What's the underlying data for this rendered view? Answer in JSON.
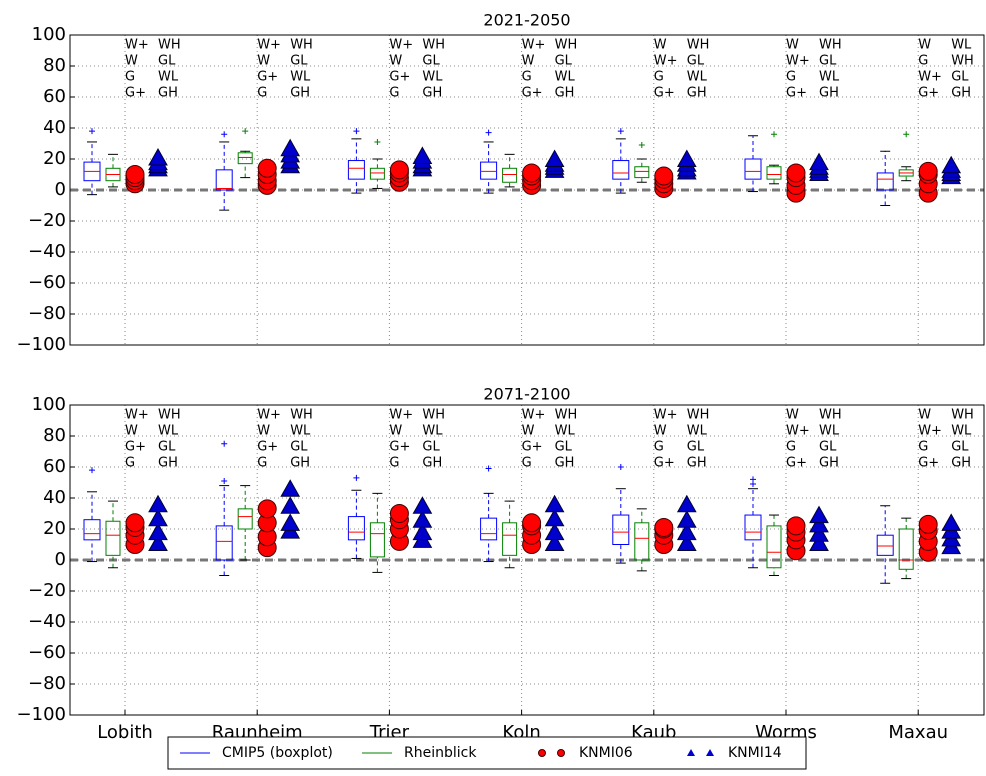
{
  "chart_data": [
    {
      "type": "box",
      "title": "2021-2050",
      "ylim": [
        -100,
        100
      ],
      "yticks": [
        {
          "value": -100,
          "label": "−100"
        },
        {
          "value": -80,
          "label": "−80"
        },
        {
          "value": -60,
          "label": "−60"
        },
        {
          "value": -40,
          "label": "−40"
        },
        {
          "value": -20,
          "label": "−20"
        },
        0,
        20,
        40,
        60,
        80,
        100
      ],
      "grid": true,
      "reference_line": 0,
      "median_color": "#ff0000",
      "series": [
        {
          "name": "CMIP5 (boxplot)",
          "color": "#0000ff",
          "values": [
            {
              "whislo": -3,
              "q1": 6,
              "med": 12,
              "q3": 18,
              "whishi": 31,
              "fliers": [
                38
              ]
            },
            {
              "whislo": -13,
              "q1": 0,
              "med": 1,
              "q3": 13,
              "whishi": 31,
              "fliers": [
                36
              ]
            },
            {
              "whislo": -2,
              "q1": 7,
              "med": 14,
              "q3": 19,
              "whishi": 33,
              "fliers": [
                38
              ]
            },
            {
              "whislo": -2,
              "q1": 7,
              "med": 12,
              "q3": 18,
              "whishi": 31,
              "fliers": [
                37
              ]
            },
            {
              "whislo": -2,
              "q1": 7,
              "med": 11,
              "q3": 19,
              "whishi": 33,
              "fliers": [
                38
              ]
            },
            {
              "whislo": -1,
              "q1": 7,
              "med": 12,
              "q3": 20,
              "whishi": 35,
              "fliers": []
            },
            {
              "whislo": -10,
              "q1": 0,
              "med": 7,
              "q3": 11,
              "whishi": 25,
              "fliers": []
            }
          ]
        },
        {
          "name": "Rheinblick",
          "color": "#008000",
          "values": [
            {
              "whislo": 2,
              "q1": 6,
              "med": 10,
              "q3": 14,
              "whishi": 23,
              "fliers": []
            },
            {
              "whislo": 8,
              "q1": 17,
              "med": 21,
              "q3": 24,
              "whishi": 25,
              "fliers": [
                38
              ]
            },
            {
              "whislo": 1,
              "q1": 7,
              "med": 11,
              "q3": 14,
              "whishi": 20,
              "fliers": [
                31
              ]
            },
            {
              "whislo": 2,
              "q1": 5,
              "med": 10,
              "q3": 14,
              "whishi": 23,
              "fliers": []
            },
            {
              "whislo": 5,
              "q1": 8,
              "med": 12,
              "q3": 15,
              "whishi": 20,
              "fliers": [
                29
              ]
            },
            {
              "whislo": 4,
              "q1": 7,
              "med": 10,
              "q3": 15,
              "whishi": 16,
              "fliers": [
                36
              ]
            },
            {
              "whislo": 6,
              "q1": 9,
              "med": 11,
              "q3": 13,
              "whishi": 15,
              "fliers": [
                36
              ]
            }
          ]
        },
        {
          "name": "KNMI06",
          "color": "#ff0000",
          "marker": "circle",
          "values": [
            [
              4,
              6,
              8,
              10
            ],
            [
              3,
              6,
              10,
              14
            ],
            [
              5,
              8,
              11,
              13
            ],
            [
              3,
              6,
              9,
              11
            ],
            [
              1,
              4,
              7,
              9
            ],
            [
              -2,
              3,
              8,
              11
            ],
            [
              -2,
              4,
              10,
              12
            ]
          ]
        },
        {
          "name": "KNMI14",
          "color": "#0000cc",
          "marker": "triangle",
          "values": [
            [
              13,
              15,
              17,
              20
            ],
            [
              15,
              18,
              22,
              26
            ],
            [
              13,
              15,
              18,
              21
            ],
            [
              12,
              14,
              16,
              19
            ],
            [
              11,
              13,
              16,
              19
            ],
            [
              10,
              12,
              14,
              17
            ],
            [
              8,
              10,
              12,
              15
            ]
          ]
        }
      ],
      "scenario_labels": [
        [
          [
            "W+",
            "W",
            "G",
            "G+"
          ],
          [
            "WH",
            "GL",
            "WL",
            "GH"
          ]
        ],
        [
          [
            "W+",
            "W",
            "G+",
            "G"
          ],
          [
            "WH",
            "GL",
            "WL",
            "GH"
          ]
        ],
        [
          [
            "W+",
            "W",
            "G+",
            "G"
          ],
          [
            "WH",
            "GL",
            "WL",
            "GH"
          ]
        ],
        [
          [
            "W+",
            "W",
            "G",
            "G+"
          ],
          [
            "WH",
            "GL",
            "WL",
            "GH"
          ]
        ],
        [
          [
            "W",
            "W+",
            "G",
            "G+"
          ],
          [
            "WH",
            "GL",
            "WL",
            "GH"
          ]
        ],
        [
          [
            "W",
            "W+",
            "G",
            "G+"
          ],
          [
            "WH",
            "GL",
            "WL",
            "GH"
          ]
        ],
        [
          [
            "W",
            "G",
            "W+",
            "G+"
          ],
          [
            "WL",
            "WH",
            "GL",
            "GH"
          ]
        ]
      ]
    },
    {
      "type": "box",
      "title": "2071-2100",
      "ylim": [
        -100,
        100
      ],
      "yticks": [
        {
          "value": -100,
          "label": "−100"
        },
        {
          "value": -80,
          "label": "−80"
        },
        {
          "value": -60,
          "label": "−60"
        },
        {
          "value": -40,
          "label": "−40"
        },
        {
          "value": -20,
          "label": "−20"
        },
        0,
        20,
        40,
        60,
        80,
        100
      ],
      "grid": true,
      "reference_line": 0,
      "median_color": "#ff0000",
      "categories": [
        "Lobith",
        "Raunheim",
        "Trier",
        "Koln",
        "Kaub",
        "Worms",
        "Maxau"
      ],
      "series": [
        {
          "name": "CMIP5 (boxplot)",
          "color": "#0000ff",
          "values": [
            {
              "whislo": -1,
              "q1": 13,
              "med": 17,
              "q3": 26,
              "whishi": 44,
              "fliers": [
                58
              ]
            },
            {
              "whislo": -10,
              "q1": 0,
              "med": 12,
              "q3": 22,
              "whishi": 48,
              "fliers": [
                51,
                75
              ]
            },
            {
              "whislo": 1,
              "q1": 13,
              "med": 18,
              "q3": 28,
              "whishi": 45,
              "fliers": [
                53
              ]
            },
            {
              "whislo": -1,
              "q1": 13,
              "med": 17,
              "q3": 27,
              "whishi": 43,
              "fliers": [
                59
              ]
            },
            {
              "whislo": -2,
              "q1": 10,
              "med": 18,
              "q3": 29,
              "whishi": 46,
              "fliers": [
                60
              ]
            },
            {
              "whislo": -5,
              "q1": 13,
              "med": 18,
              "q3": 29,
              "whishi": 46,
              "fliers": [
                49,
                52
              ]
            },
            {
              "whislo": -15,
              "q1": 3,
              "med": 9,
              "q3": 16,
              "whishi": 35,
              "fliers": []
            }
          ]
        },
        {
          "name": "Rheinblick",
          "color": "#008000",
          "values": [
            {
              "whislo": -5,
              "q1": 3,
              "med": 16,
              "q3": 25,
              "whishi": 38,
              "fliers": []
            },
            {
              "whislo": 0,
              "q1": 20,
              "med": 28,
              "q3": 33,
              "whishi": 48,
              "fliers": []
            },
            {
              "whislo": -8,
              "q1": 2,
              "med": 17,
              "q3": 24,
              "whishi": 43,
              "fliers": []
            },
            {
              "whislo": -5,
              "q1": 3,
              "med": 16,
              "q3": 24,
              "whishi": 38,
              "fliers": []
            },
            {
              "whislo": -7,
              "q1": 0,
              "med": 14,
              "q3": 24,
              "whishi": 33,
              "fliers": []
            },
            {
              "whislo": -10,
              "q1": -5,
              "med": 5,
              "q3": 22,
              "whishi": 29,
              "fliers": []
            },
            {
              "whislo": -12,
              "q1": -6,
              "med": 0,
              "q3": 20,
              "whishi": 27,
              "fliers": []
            }
          ]
        },
        {
          "name": "KNMI06",
          "color": "#ff0000",
          "marker": "circle",
          "values": [
            [
              10,
              16,
              21,
              24
            ],
            [
              8,
              15,
              24,
              33
            ],
            [
              12,
              20,
              26,
              30
            ],
            [
              10,
              16,
              22,
              24
            ],
            [
              10,
              16,
              20,
              21
            ],
            [
              6,
              13,
              18,
              22
            ],
            [
              5,
              12,
              19,
              23
            ]
          ]
        },
        {
          "name": "KNMI14",
          "color": "#0000cc",
          "marker": "triangle",
          "values": [
            [
              10,
              17,
              26,
              35
            ],
            [
              18,
              23,
              34,
              45
            ],
            [
              12,
              17,
              25,
              34
            ],
            [
              10,
              17,
              26,
              35
            ],
            [
              10,
              17,
              25,
              35
            ],
            [
              10,
              16,
              22,
              28
            ],
            [
              8,
              13,
              18,
              23
            ]
          ]
        }
      ],
      "scenario_labels": [
        [
          [
            "W+",
            "W",
            "G+",
            "G"
          ],
          [
            "WH",
            "WL",
            "GL",
            "GH"
          ]
        ],
        [
          [
            "W+",
            "W",
            "G+",
            "G"
          ],
          [
            "WH",
            "WL",
            "GL",
            "GH"
          ]
        ],
        [
          [
            "W+",
            "W",
            "G+",
            "G"
          ],
          [
            "WH",
            "WL",
            "GL",
            "GH"
          ]
        ],
        [
          [
            "W+",
            "W",
            "G+",
            "G"
          ],
          [
            "WH",
            "WL",
            "GL",
            "GH"
          ]
        ],
        [
          [
            "W+",
            "W",
            "G",
            "G+"
          ],
          [
            "WH",
            "WL",
            "GL",
            "GH"
          ]
        ],
        [
          [
            "W",
            "W+",
            "G",
            "G+"
          ],
          [
            "WH",
            "WL",
            "GL",
            "GH"
          ]
        ],
        [
          [
            "W",
            "W+",
            "G",
            "G+"
          ],
          [
            "WH",
            "WL",
            "GL",
            "GH"
          ]
        ]
      ]
    }
  ]
}
